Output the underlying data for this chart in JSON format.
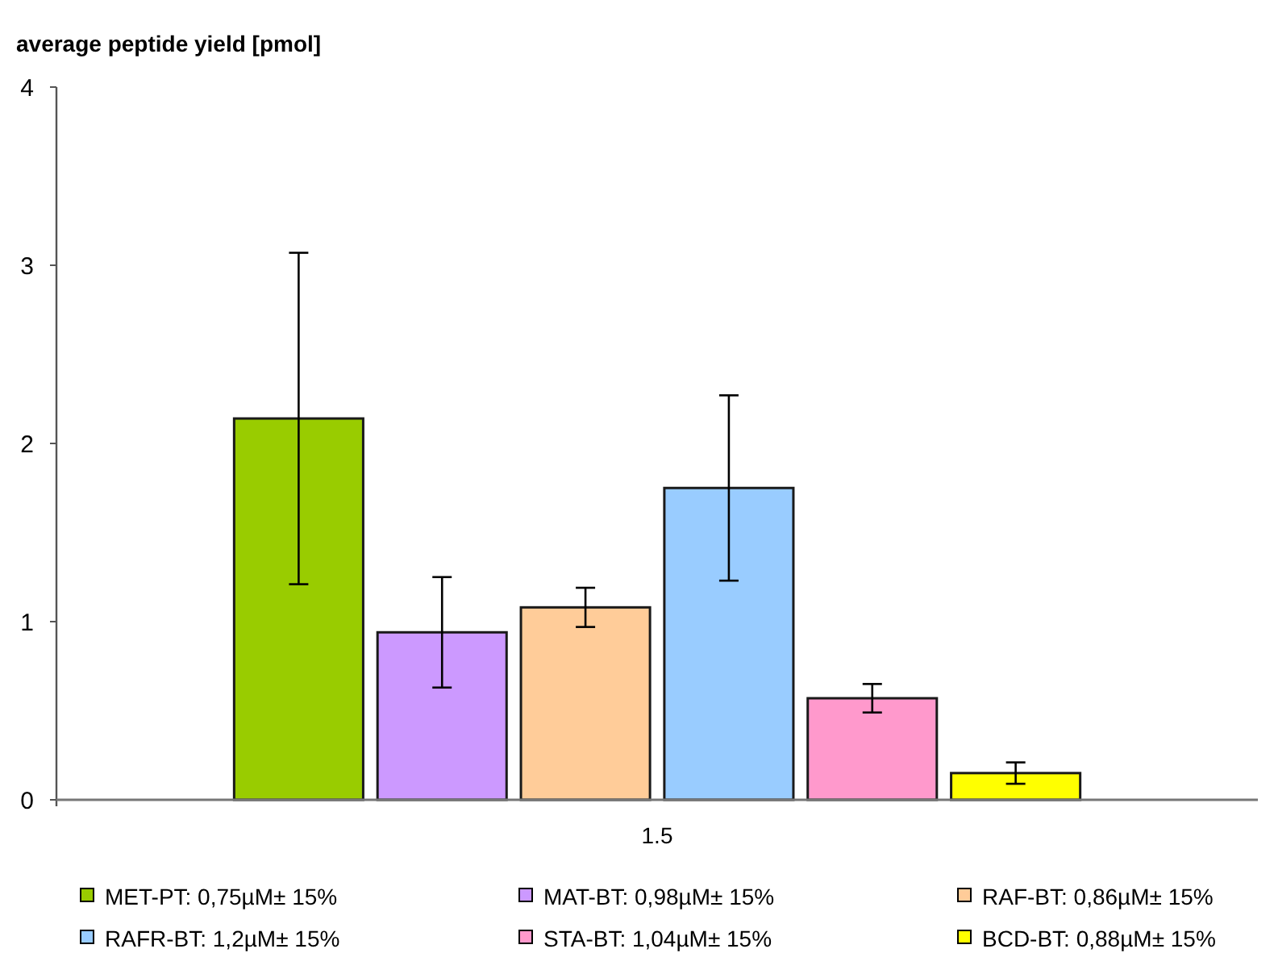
{
  "chart_data": {
    "type": "bar",
    "ylabel": "average peptide yield [pmol]",
    "categories": [
      "1.5"
    ],
    "ylim": [
      0,
      4
    ],
    "yticks": [
      0,
      1,
      2,
      3,
      4
    ],
    "grid": false,
    "legend": "bottom",
    "series": [
      {
        "name": "MET-PT: 0,75µM± 15%",
        "color": "#99cc00",
        "values": [
          2.14
        ],
        "errors": [
          0.93
        ]
      },
      {
        "name": "MAT-BT: 0,98µM± 15%",
        "color": "#cc99ff",
        "values": [
          0.94
        ],
        "errors": [
          0.31
        ]
      },
      {
        "name": "RAF-BT: 0,86µM± 15%",
        "color": "#ffcc99",
        "values": [
          1.08
        ],
        "errors": [
          0.11
        ]
      },
      {
        "name": "RAFR-BT: 1,2µM± 15%",
        "color": "#99ccff",
        "values": [
          1.75
        ],
        "errors": [
          0.52
        ]
      },
      {
        "name": "STA-BT: 1,04µM± 15%",
        "color": "#ff99cc",
        "values": [
          0.57
        ],
        "errors": [
          0.08
        ]
      },
      {
        "name": "BCD-BT: 0,88µM± 15%",
        "color": "#ffff00",
        "values": [
          0.15
        ],
        "errors": [
          0.06
        ]
      }
    ]
  }
}
